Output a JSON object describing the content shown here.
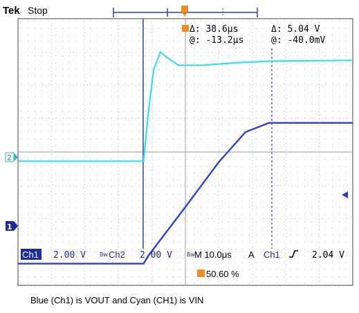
{
  "header": {
    "brand": "Tek",
    "state": "Stop"
  },
  "cursor_readout": {
    "delta_time": "Δ: 38.6μs",
    "at_time": "@: -13.2μs",
    "delta_volt": "Δ: 5.04 V",
    "at_volt": "@: -40.0mV"
  },
  "channel_markers": {
    "ch1": "1",
    "ch2": "2"
  },
  "settings": {
    "ch1_label": "Ch1",
    "ch1_scale": "2.00 V",
    "ch2_label": "Ch2",
    "ch2_scale": "2.00 V",
    "timebase": "M 10.0μs",
    "trigger_mode": "A",
    "trigger_source": "Ch1",
    "trigger_level": "2.04 V",
    "trigger_position": "50.60 %"
  },
  "caption": "Blue (Ch1) is VOUT and Cyan (CH1) is VIN",
  "colors": {
    "ch1": "#2e3fd6",
    "ch2": "#37e0e8",
    "grid": "#5a5a5a",
    "trigger": "#f28c1e",
    "marker_bg": "#1f2d9c"
  },
  "chart_data": {
    "type": "line",
    "title": "",
    "xlabel": "",
    "ylabel": "",
    "xlim": [
      -50,
      50
    ],
    "ylim": [
      -8,
      8
    ],
    "x_unit": "μs",
    "y_unit": "V",
    "series": [
      {
        "name": "Ch1",
        "x": [
          -50,
          -12.5,
          -11,
          0,
          10,
          18,
          25,
          50
        ],
        "y": [
          -6.7,
          -6.7,
          -6.2,
          -3.3,
          -0.6,
          1.2,
          1.75,
          1.75
        ]
      },
      {
        "name": "Ch2",
        "x": [
          -50,
          -12.5,
          -11,
          -9.5,
          -7.5,
          -5,
          -2,
          5,
          15,
          25,
          50
        ],
        "y": [
          -0.55,
          -0.55,
          2.5,
          4.9,
          6.0,
          5.6,
          5.2,
          5.2,
          5.35,
          5.45,
          5.5
        ]
      }
    ]
  }
}
